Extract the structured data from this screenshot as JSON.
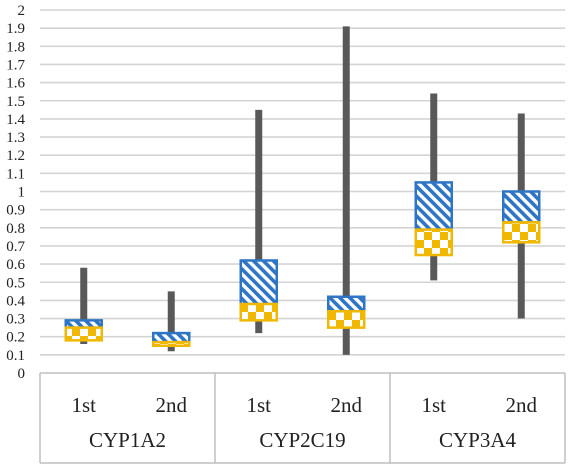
{
  "chart_data": {
    "type": "box",
    "title": "",
    "xlabel": "",
    "ylabel": "",
    "ylim": [
      0,
      2
    ],
    "y_ticks": [
      "0",
      "0.1",
      "0.2",
      "0.3",
      "0.4",
      "0.5",
      "0.6",
      "0.7",
      "0.8",
      "0.9",
      "1",
      "1.1",
      "1.2",
      "1.3",
      "1.4",
      "1.5",
      "1.6",
      "1.7",
      "1.8",
      "1.9",
      "2"
    ],
    "grid": true,
    "legend": "none",
    "groups": [
      "CYP1A2",
      "CYP2C19",
      "CYP3A4"
    ],
    "boxes": [
      {
        "group": "CYP1A2",
        "label": "1st",
        "min": 0.16,
        "q1": 0.18,
        "median": 0.25,
        "q3": 0.29,
        "max": 0.58
      },
      {
        "group": "CYP1A2",
        "label": "2nd",
        "min": 0.12,
        "q1": 0.15,
        "median": 0.17,
        "q3": 0.22,
        "max": 0.45
      },
      {
        "group": "CYP2C19",
        "label": "1st",
        "min": 0.22,
        "q1": 0.29,
        "median": 0.38,
        "q3": 0.62,
        "max": 1.45
      },
      {
        "group": "CYP2C19",
        "label": "2nd",
        "min": 0.1,
        "q1": 0.25,
        "median": 0.34,
        "q3": 0.42,
        "max": 1.91
      },
      {
        "group": "CYP3A4",
        "label": "1st",
        "min": 0.51,
        "q1": 0.65,
        "median": 0.79,
        "q3": 1.05,
        "max": 1.54
      },
      {
        "group": "CYP3A4",
        "label": "2nd",
        "min": 0.3,
        "q1": 0.72,
        "median": 0.83,
        "q3": 1.0,
        "max": 1.43
      }
    ],
    "colors": {
      "upper_box": "#2e75c6",
      "lower_box": "#f0b800",
      "whisker": "#595959",
      "grid": "#d4d4d4",
      "axis": "#bfbfbf"
    }
  }
}
